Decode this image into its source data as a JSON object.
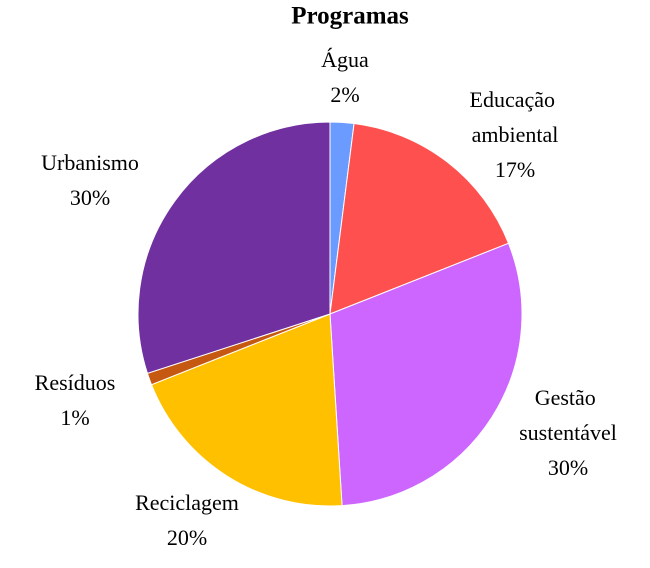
{
  "chart_data": {
    "type": "pie",
    "title": "Programas",
    "categories": [
      "Água",
      "Educação ambiental",
      "Gestão sustentável",
      "Reciclagem",
      "Resíduos",
      "Urbanismo"
    ],
    "values": [
      2,
      17,
      30,
      20,
      1,
      30
    ],
    "value_labels": [
      "2%",
      "17%",
      "30%",
      "20%",
      "1%",
      "30%"
    ],
    "colors": [
      "#6b9bff",
      "#ff5050",
      "#cc66ff",
      "#ffc000",
      "#c65911",
      "#7030a0"
    ]
  }
}
